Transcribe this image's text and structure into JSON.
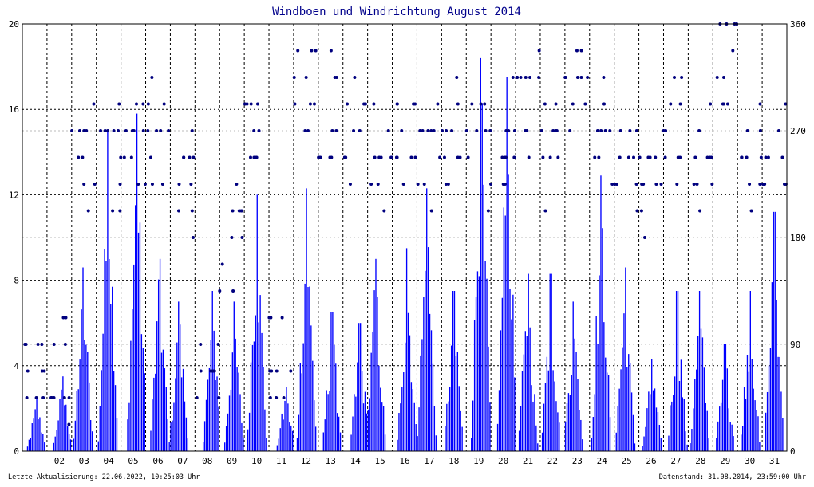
{
  "chart_data": {
    "type": "bar+scatter",
    "title": "Windboen und Windrichtung August 2014",
    "x_ticks": [
      "02",
      "03",
      "04",
      "05",
      "06",
      "07",
      "08",
      "09",
      "10",
      "11",
      "12",
      "13",
      "14",
      "15",
      "16",
      "17",
      "18",
      "19",
      "20",
      "21",
      "22",
      "23",
      "24",
      "25",
      "26",
      "27",
      "28",
      "29",
      "30",
      "31"
    ],
    "y_left_ticks": [
      "0",
      "4",
      "8",
      "12",
      "16",
      "20"
    ],
    "y_left_range": [
      0,
      20
    ],
    "y_right_ticks": [
      "0",
      "90",
      "180",
      "270",
      "360"
    ],
    "y_right_range": [
      0,
      360
    ],
    "grid": true,
    "series": [
      {
        "kind": "bar",
        "color": "#0000ff",
        "daily_peak_gust": [
          3.5,
          8.6,
          15.0,
          15.8,
          9.0,
          7.0,
          7.5,
          7.0,
          12.0,
          3.0,
          12.3,
          6.5,
          6.0,
          9.0,
          9.5,
          12.3,
          7.5,
          18.4,
          17.5,
          8.3,
          8.3,
          7.0,
          12.9,
          8.6,
          4.3,
          7.5,
          7.5,
          5.0,
          7.5,
          11.2
        ]
      },
      {
        "kind": "scatter",
        "color": "#00007f",
        "daily_dominant_direction_deg": [
          67,
          247,
          247,
          247,
          270,
          225,
          90,
          180,
          270,
          67,
          315,
          292,
          270,
          247,
          270,
          247,
          270,
          247,
          270,
          292,
          247,
          315,
          270,
          247,
          225,
          270,
          247,
          337,
          247,
          247
        ]
      }
    ]
  },
  "footer": {
    "left": "Letzte Aktualisierung: 22.06.2022, 10:25:03 Uhr",
    "right": "Datenstand: 31.08.2014, 23:59:00 Uhr"
  },
  "colors": {
    "bars": "#0000ff",
    "dots": "#00007f",
    "title": "#00008b",
    "grid": "#000000",
    "grid_minor": "#bbbbbb"
  }
}
